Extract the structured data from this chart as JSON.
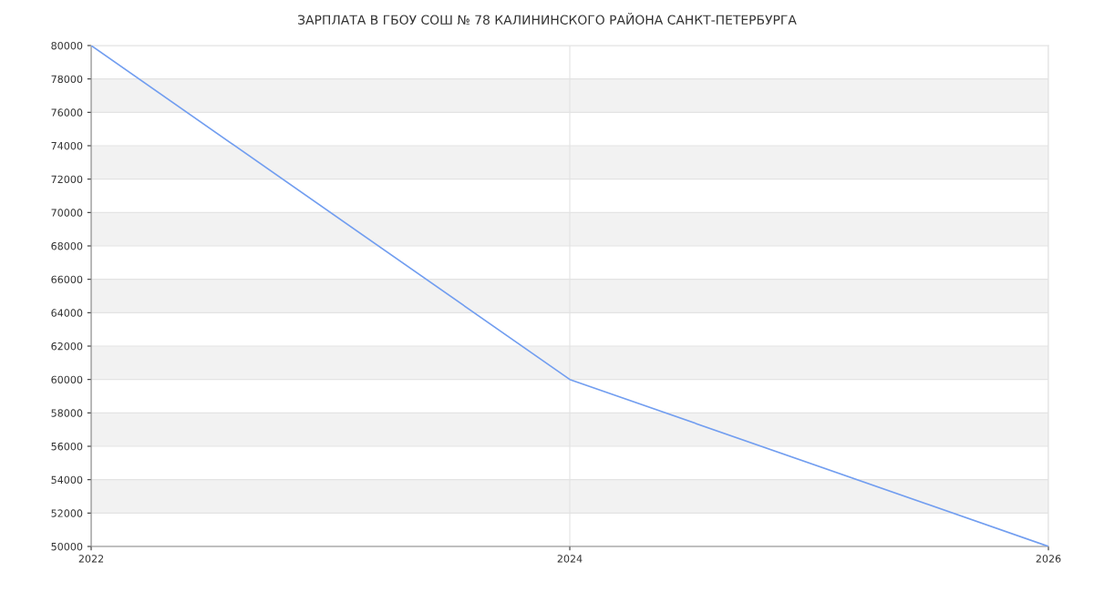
{
  "chart_data": {
    "type": "line",
    "title": "ЗАРПЛАТА В ГБОУ СОШ № 78 КАЛИНИНСКОГО РАЙОНА САНКТ-ПЕТЕРБУРГА",
    "x": [
      2022,
      2024,
      2026
    ],
    "series": [
      {
        "color": "#729ef0",
        "values": [
          80000,
          60000,
          50000
        ]
      }
    ],
    "xlim": [
      2022,
      2026
    ],
    "xticks": [
      2022,
      2024,
      2026
    ],
    "ylim": [
      50000,
      80000
    ],
    "yticks": [
      50000,
      52000,
      54000,
      56000,
      58000,
      60000,
      62000,
      64000,
      66000,
      68000,
      70000,
      72000,
      74000,
      76000,
      78000,
      80000
    ],
    "bands": [
      {
        "axis": "y",
        "from": 52000,
        "to": 54000,
        "color": "#f2f2f2"
      },
      {
        "axis": "y",
        "from": 56000,
        "to": 58000,
        "color": "#f2f2f2"
      },
      {
        "axis": "y",
        "from": 60000,
        "to": 62000,
        "color": "#f2f2f2"
      },
      {
        "axis": "y",
        "from": 64000,
        "to": 66000,
        "color": "#f2f2f2"
      },
      {
        "axis": "y",
        "from": 68000,
        "to": 70000,
        "color": "#f2f2f2"
      },
      {
        "axis": "y",
        "from": 72000,
        "to": 74000,
        "color": "#f2f2f2"
      },
      {
        "axis": "y",
        "from": 76000,
        "to": 78000,
        "color": "#f2f2f2"
      }
    ],
    "grid": true,
    "marker": "none",
    "line_style": "solid"
  }
}
